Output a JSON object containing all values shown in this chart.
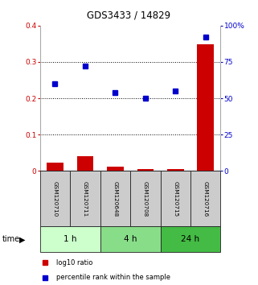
{
  "title": "GDS3433 / 14829",
  "samples": [
    "GSM120710",
    "GSM120711",
    "GSM120648",
    "GSM120708",
    "GSM120715",
    "GSM120716"
  ],
  "log10_ratio": [
    0.022,
    0.04,
    0.012,
    0.005,
    0.005,
    0.348
  ],
  "percentile_rank": [
    60,
    72,
    54,
    50,
    55,
    92
  ],
  "left_ylim": [
    0,
    0.4
  ],
  "right_ylim": [
    0,
    100
  ],
  "left_yticks": [
    0,
    0.1,
    0.2,
    0.3,
    0.4
  ],
  "right_yticks": [
    0,
    25,
    50,
    75,
    100
  ],
  "left_yticklabels": [
    "0",
    "0.1",
    "0.2",
    "0.3",
    "0.4"
  ],
  "right_yticklabels": [
    "0",
    "25",
    "50",
    "75",
    "100%"
  ],
  "dotted_lines": [
    0.1,
    0.2,
    0.3
  ],
  "bar_color": "#cc0000",
  "dot_color": "#0000cc",
  "time_groups": [
    {
      "label": "1 h",
      "start": 0,
      "end": 2,
      "color": "#ccffcc"
    },
    {
      "label": "4 h",
      "start": 2,
      "end": 4,
      "color": "#88dd88"
    },
    {
      "label": "24 h",
      "start": 4,
      "end": 6,
      "color": "#44bb44"
    }
  ],
  "sample_box_color": "#cccccc",
  "sample_box_edge": "#222222",
  "legend_items": [
    {
      "color": "#cc0000",
      "label": "log10 ratio"
    },
    {
      "color": "#0000cc",
      "label": "percentile rank within the sample"
    }
  ],
  "fig_width": 3.21,
  "fig_height": 3.54,
  "dpi": 100
}
